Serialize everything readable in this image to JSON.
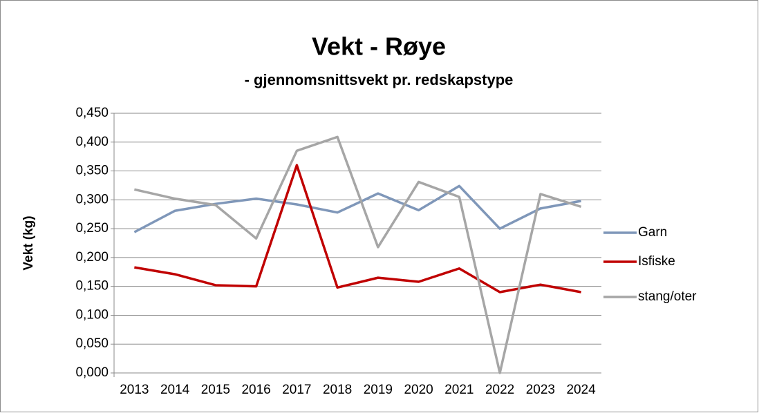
{
  "chart_data": {
    "type": "line",
    "title": "Vekt - Røye",
    "subtitle": "- gjennomsnittsvekt pr. redskapstype",
    "ylabel": "Vekt (kg)",
    "categories": [
      "2013",
      "2014",
      "2015",
      "2016",
      "2017",
      "2018",
      "2019",
      "2020",
      "2021",
      "2022",
      "2023",
      "2024"
    ],
    "series": [
      {
        "name": "Garn",
        "color": "#7f97b9",
        "values": [
          0.244,
          0.281,
          0.293,
          0.302,
          0.292,
          0.278,
          0.311,
          0.282,
          0.324,
          0.25,
          0.285,
          0.298
        ]
      },
      {
        "name": "Isfiske",
        "color": "#c00000",
        "values": [
          0.183,
          0.171,
          0.152,
          0.15,
          0.36,
          0.148,
          0.165,
          0.158,
          0.181,
          0.14,
          0.153,
          0.14
        ]
      },
      {
        "name": "stang/oter",
        "color": "#a6a6a6",
        "values": [
          0.318,
          0.302,
          0.291,
          0.233,
          0.385,
          0.409,
          0.218,
          0.331,
          0.305,
          0,
          0.31,
          0.288
        ]
      }
    ],
    "ylim": [
      0,
      0.45
    ],
    "yticks": [
      {
        "value": 0,
        "label": "0,000"
      },
      {
        "value": 0.05,
        "label": "0,050"
      },
      {
        "value": 0.1,
        "label": "0,100"
      },
      {
        "value": 0.15,
        "label": "0,150"
      },
      {
        "value": 0.2,
        "label": "0,200"
      },
      {
        "value": 0.25,
        "label": "0,250"
      },
      {
        "value": 0.3,
        "label": "0,300"
      },
      {
        "value": 0.35,
        "label": "0,350"
      },
      {
        "value": 0.4,
        "label": "0,400"
      },
      {
        "value": 0.45,
        "label": "0,450"
      }
    ],
    "grid": true,
    "legend": "right"
  }
}
